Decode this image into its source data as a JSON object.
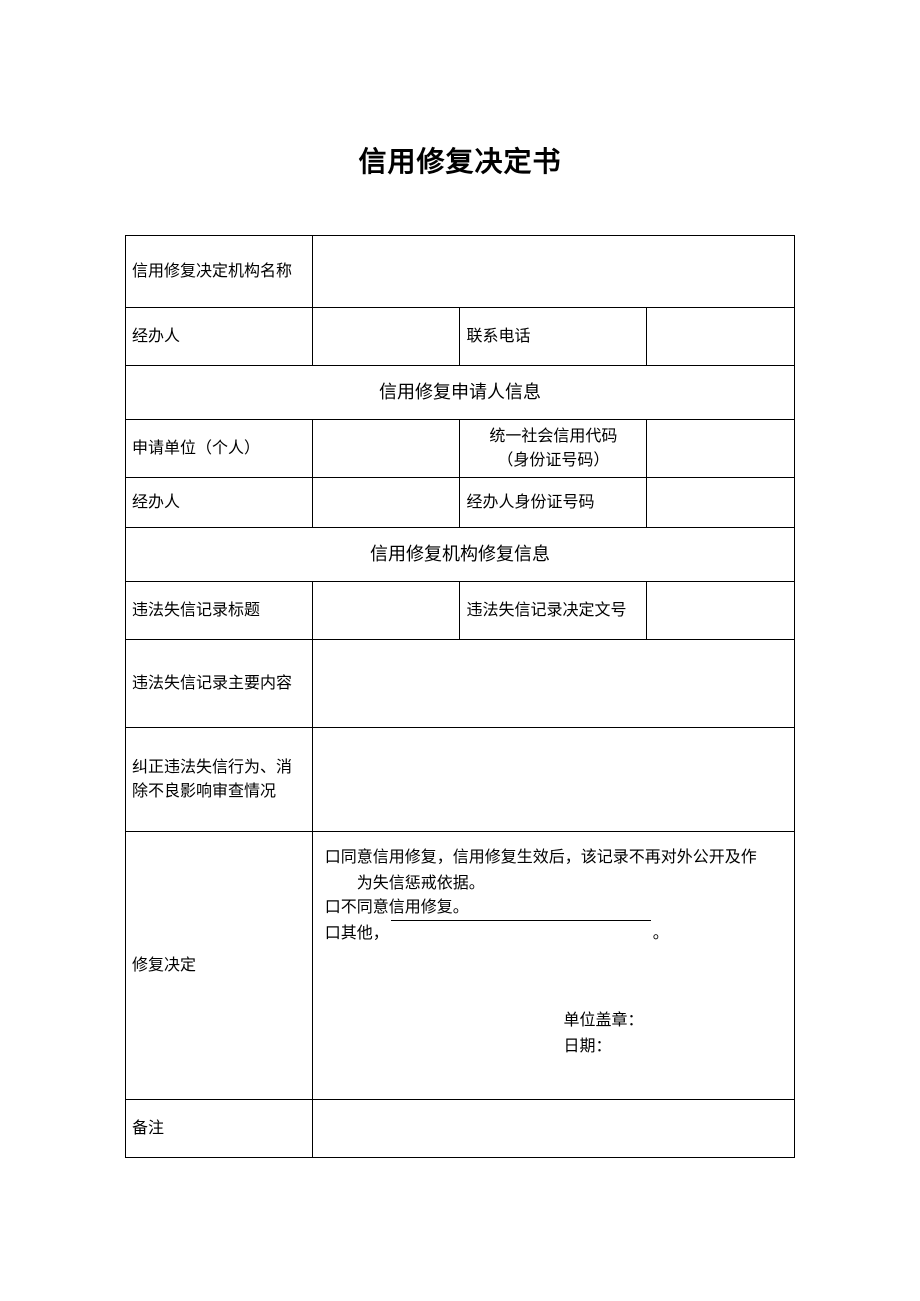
{
  "title": "信用修复决定书",
  "rows": {
    "org_name_label": "信用修复决定机构名称",
    "org_name_value": "",
    "handler_label": "经办人",
    "handler_value": "",
    "phone_label": "联系电话",
    "phone_value": "",
    "section_applicant": "信用修复申请人信息",
    "applicant_unit_label": "申请单位（个人）",
    "applicant_unit_value": "",
    "credit_code_label_l1": "统一社会信用代码",
    "credit_code_label_l2": "（身份证号码）",
    "credit_code_value": "",
    "app_handler_label": "经办人",
    "app_handler_value": "",
    "app_handler_id_label": "经办人身份证号码",
    "app_handler_id_value": "",
    "section_repair": "信用修复机构修复信息",
    "record_title_label": "违法失信记录标题",
    "record_title_value": "",
    "record_doc_label": "违法失信记录决定文号",
    "record_doc_value": "",
    "record_content_label": "违法失信记录主要内容",
    "record_content_value": "",
    "correction_label": "纠正违法失信行为、消除不良影响审查情况",
    "correction_value": "",
    "decision_label": "修复决定",
    "remark_label": "备注",
    "remark_value": ""
  },
  "decision": {
    "checkbox_glyph": "口",
    "opt1_line1": "同意信用修复，信用修复生效后，该记录不再对外公开及作",
    "opt1_line2": "为失信惩戒依据。",
    "opt2": "不同意信用修复。",
    "opt3_prefix": "其他，",
    "opt3_suffix": "。",
    "stamp_label": "单位盖章：",
    "date_label": "日期："
  },
  "style": {
    "border_color": "#000000",
    "background_color": "#ffffff",
    "title_fontsize": 28,
    "body_fontsize": 16,
    "section_fontsize": 18
  }
}
